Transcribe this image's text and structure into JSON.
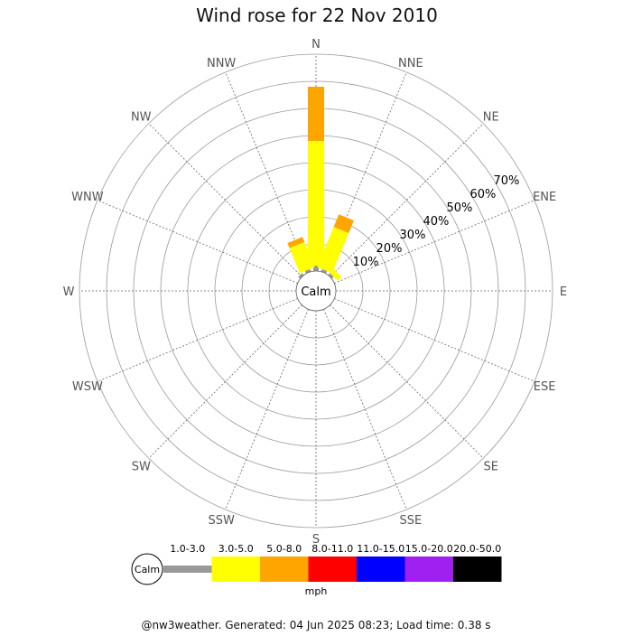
{
  "chart_data": {
    "type": "wind-rose",
    "title": "Wind rose for 22 Nov 2010",
    "directions": [
      "N",
      "NNE",
      "NE",
      "ENE",
      "E",
      "ESE",
      "SE",
      "SSE",
      "S",
      "SSW",
      "SW",
      "WSW",
      "W",
      "WNW",
      "NW",
      "NNW"
    ],
    "radial_ticks": [
      "10%",
      "20%",
      "30%",
      "40%",
      "50%",
      "60%",
      "70%"
    ],
    "radial_max_percent": 80,
    "calm_label": "Calm",
    "speed_bins": [
      {
        "label": "1.0-3.0",
        "color": "#999999"
      },
      {
        "label": "3.0-5.0",
        "color": "#ffff00"
      },
      {
        "label": "5.0-8.0",
        "color": "#ffa500"
      },
      {
        "label": "8.0-11.0",
        "color": "#ff0000"
      },
      {
        "label": "11.0-15.0",
        "color": "#0000ff"
      },
      {
        "label": "15.0-20.0",
        "color": "#a020f0"
      },
      {
        "label": "20.0-50.0",
        "color": "#000000"
      }
    ],
    "speed_unit": "mph",
    "series": [
      {
        "direction": "N",
        "values": [
          2,
          46,
          20,
          0,
          0,
          0,
          0
        ]
      },
      {
        "direction": "NNE",
        "values": [
          1,
          16,
          5,
          0,
          0,
          0,
          0
        ]
      },
      {
        "direction": "NE",
        "values": [
          1,
          2,
          0,
          0,
          0,
          0,
          0
        ]
      },
      {
        "direction": "NNW",
        "values": [
          1,
          10,
          2,
          0,
          0,
          0,
          0
        ]
      },
      {
        "direction": "NW",
        "values": [
          1,
          0,
          0,
          0,
          0,
          0,
          0
        ]
      }
    ]
  },
  "footer": "@nw3weather. Generated: 04 Jun 2025 08:23; Load time: 0.38 s"
}
